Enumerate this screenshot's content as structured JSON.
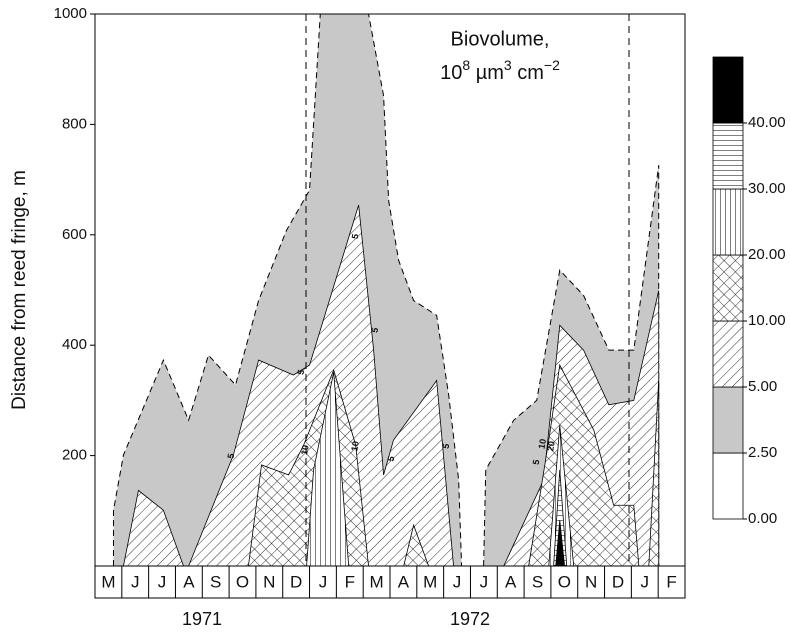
{
  "chart_data": {
    "type": "contour",
    "y_label": "Distance from reed fringe, m",
    "title": "Biovolume,",
    "units": [
      "10",
      "8",
      " µm",
      "3",
      " cm",
      "−2"
    ],
    "categories": [
      "M",
      "J",
      "J",
      "A",
      "S",
      "O",
      "N",
      "D",
      "J",
      "F",
      "M",
      "A",
      "M",
      "J",
      "J",
      "A",
      "S",
      "O",
      "N",
      "D",
      "J",
      "F"
    ],
    "years": [
      "1971",
      "1972"
    ],
    "xlim": [
      -0.5,
      21.5
    ],
    "ylim": [
      0,
      1000
    ],
    "yticks": [
      200,
      400,
      600,
      800,
      1000
    ],
    "levels": [
      {
        "value": 0,
        "label": "0.00"
      },
      {
        "value": 2.5,
        "label": "2.50"
      },
      {
        "value": 5,
        "label": "5.00"
      },
      {
        "value": 10,
        "label": "10.00"
      },
      {
        "value": 20,
        "label": "20.00"
      },
      {
        "value": 30,
        "label": "30.00"
      },
      {
        "value": 40,
        "label": "40.00"
      }
    ],
    "band_fills": [
      "white",
      "gray",
      "hatch",
      "cross",
      "vlines",
      "hlines",
      "black"
    ],
    "regions": [
      {
        "level": 2.5,
        "fill": "gray",
        "polygons": [
          {
            "x": [
              0.19,
              0.19,
              0.56,
              2.05,
              2.99,
              3.73,
              4.74,
              5.6,
              6.64,
              7.5,
              7.9,
              9.7,
              10.26,
              10.45,
              10.82,
              11.38,
              12.24,
              12.69,
              13.06,
              13.17
            ],
            "y": [
              0,
              101,
              201,
              373,
              264,
              382,
              328,
              481,
              608,
              681,
              1000,
              1000,
              852,
              662,
              554,
              481,
              454,
              309,
              156,
              0
            ]
          },
          {
            "x": [
              13.99,
              14.07,
              15.11,
              15.97,
              16.83,
              17.72,
              18.66,
              19.59,
              20.52,
              20.52
            ],
            "y": [
              0,
              174,
              264,
              300,
              536,
              490,
              391,
              391,
              726,
              0
            ]
          }
        ]
      },
      {
        "level": 5,
        "fill": "hatch",
        "polygons": [
          {
            "x": [
              0.56,
              1.12,
              2.05,
              2.8
            ],
            "y": [
              0,
              137,
              101,
              0
            ]
          },
          {
            "x": [
              2.99,
              4.66,
              5.6,
              6.9,
              7.5,
              9.33,
              9.89,
              10.26,
              10.63,
              12.24,
              12.87
            ],
            "y": [
              0,
              201,
              373,
              346,
              364,
              654,
              391,
              165,
              228,
              336,
              0
            ]
          },
          {
            "x": [
              14.74,
              16.23,
              16.83,
              17.72,
              18.66,
              19.59,
              20.52,
              20.52
            ],
            "y": [
              0,
              156,
              436,
              391,
              292,
              300,
              499,
              0
            ]
          }
        ]
      },
      {
        "level": 10,
        "fill": "cross",
        "polygons": [
          {
            "x": [
              5.22,
              5.71,
              6.72,
              7.28,
              8.4,
              9.22,
              9.7
            ],
            "y": [
              0,
              183,
              165,
              219,
              355,
              219,
              0
            ]
          },
          {
            "x": [
              11.01,
              11.38,
              11.94
            ],
            "y": [
              0,
              74,
              0
            ]
          },
          {
            "x": [
              15.67,
              16.42,
              16.83,
              18.1,
              18.84,
              19.59,
              19.78
            ],
            "y": [
              0,
              228,
              364,
              246,
              110,
              110,
              0
            ]
          },
          {
            "x": [
              20.15,
              20.52,
              20.52
            ],
            "y": [
              0,
              337,
              0
            ]
          }
        ]
      },
      {
        "level": 20,
        "fill": "vlines",
        "polygons": [
          {
            "x": [
              7.39,
              7.65,
              8.4,
              8.96
            ],
            "y": [
              0,
              174,
              351,
              0
            ]
          },
          {
            "x": [
              16.42,
              16.83,
              17.35
            ],
            "y": [
              0,
              255,
              0
            ]
          }
        ]
      },
      {
        "level": 30,
        "fill": "hlines",
        "polygons": [
          {
            "x": [
              16.6,
              16.83,
              17.09
            ],
            "y": [
              0,
              174,
              0
            ]
          }
        ]
      },
      {
        "level": 40,
        "fill": "black",
        "polygons": [
          {
            "x": [
              16.68,
              16.83,
              17.01
            ],
            "y": [
              0,
              83,
              0
            ]
          }
        ]
      }
    ],
    "annotations": [
      {
        "text": "5",
        "x": 4.59,
        "y": 199
      },
      {
        "text": "5",
        "x": 7.2,
        "y": 351
      },
      {
        "text": "10",
        "x": 7.35,
        "y": 210
      },
      {
        "text": "5",
        "x": 9.22,
        "y": 597
      },
      {
        "text": "10",
        "x": 9.22,
        "y": 217
      },
      {
        "text": "5",
        "x": 9.96,
        "y": 427
      },
      {
        "text": "5",
        "x": 10.56,
        "y": 194
      },
      {
        "text": "5",
        "x": 12.61,
        "y": 217
      },
      {
        "text": "5",
        "x": 15.97,
        "y": 188
      },
      {
        "text": "10",
        "x": 16.2,
        "y": 221
      },
      {
        "text": "20",
        "x": 16.53,
        "y": 217
      }
    ]
  }
}
